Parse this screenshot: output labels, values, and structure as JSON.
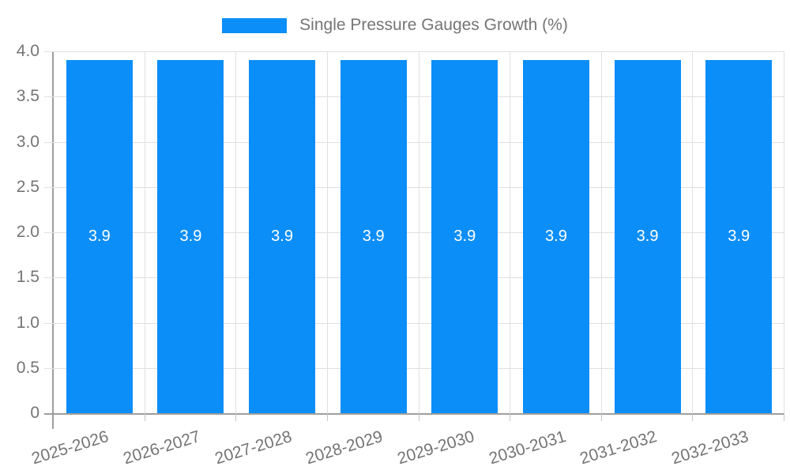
{
  "legend": {
    "label": "Single Pressure Gauges Growth (%)"
  },
  "chart_data": {
    "type": "bar",
    "title": "Single Pressure Gauges Growth (%)",
    "categories": [
      "2025-2026",
      "2026-2027",
      "2027-2028",
      "2028-2029",
      "2029-2030",
      "2030-2031",
      "2031-2032",
      "2032-2033"
    ],
    "values": [
      3.9,
      3.9,
      3.9,
      3.9,
      3.9,
      3.9,
      3.9,
      3.9
    ],
    "data_labels": [
      "3.9",
      "3.9",
      "3.9",
      "3.9",
      "3.9",
      "3.9",
      "3.9",
      "3.9"
    ],
    "xlabel": "",
    "ylabel": "",
    "ylim": [
      0,
      4
    ],
    "ytick_step": 0.5,
    "ytick_labels": [
      "0",
      "0.5",
      "1.0",
      "1.5",
      "2.0",
      "2.5",
      "3.0",
      "3.5",
      "4.0"
    ],
    "grid": true,
    "legend_position": "top",
    "colors": {
      "bar": "#0c8ef8",
      "grid": "#e0e0e0",
      "axis": "#9e9e9e",
      "tick_text": "#757575",
      "bar_label": "#ffffff",
      "background": "#ffffff"
    }
  }
}
